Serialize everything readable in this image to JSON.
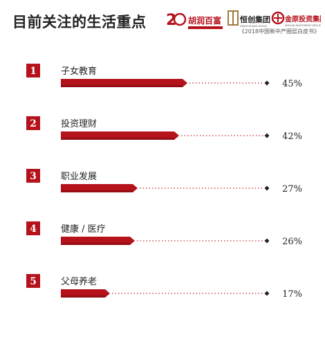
{
  "header": {
    "title": "目前关注的生活重点",
    "sponsor_note": "《2018中国新中产圈层白皮书》",
    "logos": [
      {
        "name": "hurun-20-logo",
        "text": "胡润百富"
      },
      {
        "name": "hengchuang-logo",
        "text": "恒创集团",
        "sub": "HENGCHUANG GROUP"
      },
      {
        "name": "jinyuan-logo",
        "text": "金原投资集团",
        "sub": "JINYUAN INVESTMENT GROUP"
      }
    ]
  },
  "colors": {
    "bar": "#b5121b",
    "bar_dark": "#7a0a10",
    "badge": "#b5121b",
    "dots": "#c0272d",
    "text": "#222222"
  },
  "chart_data": {
    "type": "bar",
    "title": "目前关注的生活重点",
    "categories": [
      "子女教育",
      "投资理财",
      "职业发展",
      "健康 / 医疗",
      "父母养老"
    ],
    "ranks": [
      "1",
      "2",
      "3",
      "4",
      "5"
    ],
    "values": [
      45,
      42,
      27,
      26,
      17
    ],
    "value_labels": [
      "45%",
      "42%",
      "27%",
      "26%",
      "17%"
    ],
    "unit": "%"
  }
}
